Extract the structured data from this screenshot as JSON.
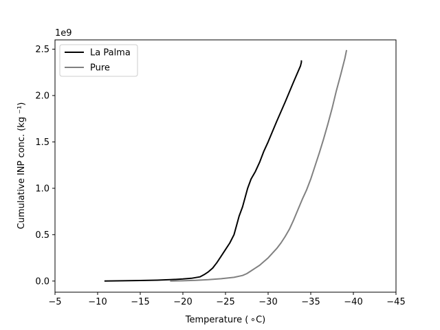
{
  "chart_data": {
    "type": "line",
    "title": "",
    "xlabel": "Temperature ( ∘C)",
    "ylabel": "Cumulative INP conc. (kg ⁻¹)",
    "y_offset_text": "1e9",
    "xlim": [
      -5,
      -45
    ],
    "ylim": [
      -0.12,
      2.6
    ],
    "x_inverted": true,
    "xticks": [
      -5,
      -10,
      -15,
      -20,
      -25,
      -30,
      -35,
      -40,
      -45
    ],
    "xtick_labels": [
      "−5",
      "−10",
      "−15",
      "−20",
      "−25",
      "−30",
      "−35",
      "−40",
      "−45"
    ],
    "yticks": [
      0.0,
      0.5,
      1.0,
      1.5,
      2.0,
      2.5
    ],
    "ytick_labels": [
      "0.0",
      "0.5",
      "1.0",
      "1.5",
      "2.0",
      "2.5"
    ],
    "grid": false,
    "legend": "top-left",
    "series": [
      {
        "name": "La Palma",
        "color": "#000000",
        "x": [
          -10.8,
          -13,
          -15,
          -17,
          -18.5,
          -20,
          -21,
          -22,
          -22.5,
          -23,
          -23.5,
          -24,
          -24.5,
          -25,
          -25.5,
          -26,
          -26.3,
          -26.6,
          -27,
          -27.3,
          -27.6,
          -28,
          -28.5,
          -29,
          -29.5,
          -30,
          -31,
          -32,
          -33,
          -33.8,
          -33.9,
          -33.9
        ],
        "y": [
          0.0,
          0.003,
          0.006,
          0.01,
          0.015,
          0.022,
          0.03,
          0.045,
          0.07,
          0.1,
          0.14,
          0.2,
          0.27,
          0.34,
          0.41,
          0.5,
          0.6,
          0.7,
          0.8,
          0.9,
          1.0,
          1.1,
          1.18,
          1.28,
          1.4,
          1.5,
          1.72,
          1.93,
          2.15,
          2.32,
          2.36,
          2.38
        ]
      },
      {
        "name": "Pure",
        "color": "#808080",
        "x": [
          -18.5,
          -20,
          -21.5,
          -23,
          -24.5,
          -26,
          -27,
          -27.5,
          -28,
          -28.5,
          -29,
          -29.5,
          -30,
          -30.5,
          -31,
          -31.5,
          -32,
          -32.5,
          -33,
          -33.5,
          -34,
          -34.5,
          -35,
          -35.5,
          -36,
          -36.5,
          -37,
          -37.5,
          -38,
          -38.5,
          -39,
          -39.2
        ],
        "y": [
          0.0,
          0.003,
          0.008,
          0.015,
          0.025,
          0.04,
          0.06,
          0.08,
          0.11,
          0.14,
          0.17,
          0.21,
          0.25,
          0.3,
          0.35,
          0.41,
          0.48,
          0.56,
          0.66,
          0.77,
          0.88,
          0.98,
          1.1,
          1.24,
          1.38,
          1.53,
          1.69,
          1.86,
          2.05,
          2.22,
          2.4,
          2.49
        ]
      }
    ]
  }
}
